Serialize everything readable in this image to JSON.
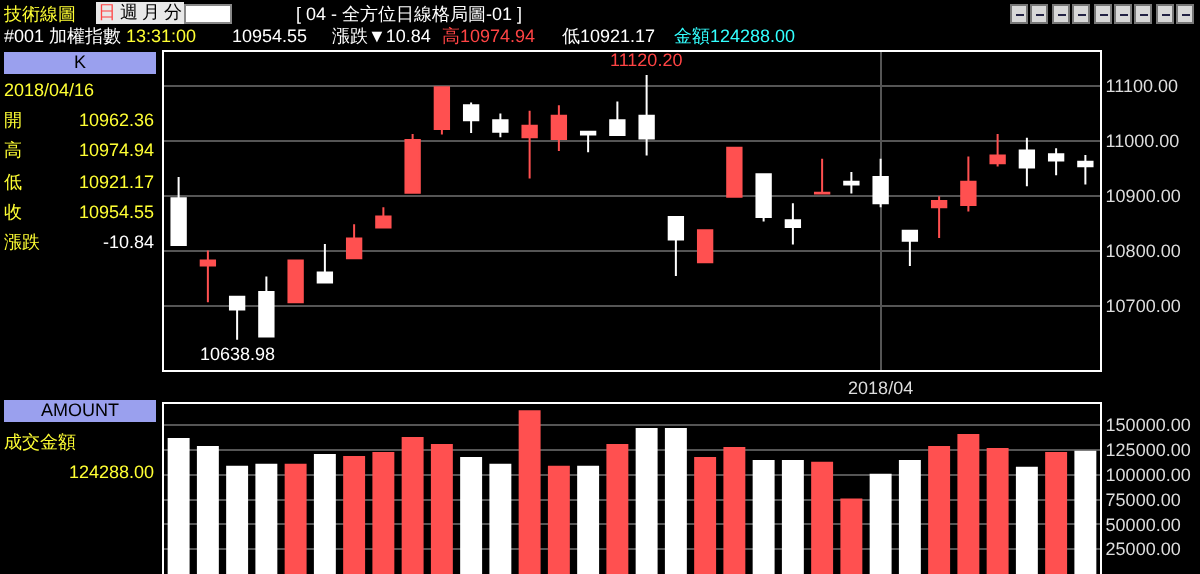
{
  "chart_data": [
    {
      "type": "candlestick",
      "title": "[ 04 - 全方位日線格局圖-01 ]",
      "categories": [
        null,
        null,
        null,
        null,
        null,
        null,
        null,
        null,
        null,
        null,
        null,
        null,
        null,
        null,
        null,
        null,
        null,
        null,
        null,
        null,
        null,
        null,
        null,
        null,
        "2018/04",
        null,
        null,
        null,
        null,
        null,
        null,
        null
      ],
      "ohlc": [
        [
          10896,
          10935,
          10811,
          10811
        ],
        [
          10774,
          10801,
          10707,
          10783
        ],
        [
          10717,
          10717,
          10638.98,
          10694
        ],
        [
          10726,
          10754,
          10645,
          10645
        ],
        [
          10707,
          10783,
          10707,
          10783
        ],
        [
          10761,
          10813,
          10743,
          10743
        ],
        [
          10787,
          10849,
          10787,
          10823
        ],
        [
          10843,
          10880,
          10843,
          10863
        ],
        [
          10906,
          11013,
          10906,
          11002
        ],
        [
          11022,
          11098,
          11012,
          11098
        ],
        [
          11065,
          11070,
          11015,
          11038
        ],
        [
          11038,
          11050,
          11007,
          11017
        ],
        [
          11007,
          11055,
          10932,
          11028
        ],
        [
          11004,
          11065,
          10982,
          11046
        ],
        [
          11017,
          11017,
          10980,
          11012
        ],
        [
          11038,
          11072,
          11011,
          11011
        ],
        [
          11046,
          11120.2,
          10974,
          11005
        ],
        [
          10862,
          10862,
          10755,
          10821
        ],
        [
          10780,
          10838,
          10778,
          10838
        ],
        [
          10899,
          10988,
          10899,
          10988
        ],
        [
          10940,
          10940,
          10854,
          10862
        ],
        [
          10856,
          10887,
          10812,
          10844
        ],
        [
          10905,
          10968,
          10905,
          10906
        ],
        [
          10926,
          10944,
          10905,
          10921
        ],
        [
          10935,
          10968,
          10880,
          10887
        ],
        [
          10837,
          10837,
          10773,
          10819
        ],
        [
          10880,
          10900,
          10824,
          10891
        ],
        [
          10884,
          10972,
          10872,
          10926
        ],
        [
          10960,
          11013,
          10954,
          10974
        ],
        [
          10983,
          11006,
          10918,
          10952
        ],
        [
          10976,
          10987,
          10938,
          10965
        ],
        [
          10962.36,
          10974.94,
          10921.17,
          10954.55
        ]
      ],
      "colors": [
        "#ffffff",
        "#ff5050",
        "#ffffff",
        "#ffffff",
        "#ff5050",
        "#ffffff",
        "#ff5050",
        "#ff5050",
        "#ff5050",
        "#ff5050",
        "#ffffff",
        "#ffffff",
        "#ff5050",
        "#ff5050",
        "#ffffff",
        "#ffffff",
        "#ffffff",
        "#ffffff",
        "#ff5050",
        "#ff5050",
        "#ffffff",
        "#ffffff",
        "#ff5050",
        "#ffffff",
        "#ffffff",
        "#ffffff",
        "#ff5050",
        "#ff5050",
        "#ff5050",
        "#ffffff",
        "#ffffff",
        "#ffffff"
      ],
      "ylim": [
        10584,
        11162
      ],
      "yticks": [
        {
          "value": 10700,
          "label": "10700.00"
        },
        {
          "value": 10800,
          "label": "10800.00"
        },
        {
          "value": 10900,
          "label": "10900.00"
        },
        {
          "value": 11000,
          "label": "11000.00"
        },
        {
          "value": 11100,
          "label": "11100.00"
        }
      ],
      "grid": true,
      "annotations": [
        "技術線圖",
        "日",
        "週",
        "月",
        "分",
        "#001 加權指數",
        "13:31:00",
        "10954.55",
        "漲跌▼10.84",
        "高10974.94",
        "低10921.17",
        "金額124288.00",
        "K",
        "2018/04/16",
        "開",
        "10962.36",
        "高",
        "10974.94",
        "低",
        "10921.17",
        "收",
        "10954.55",
        "漲跌",
        "-10.84",
        {
          "text": "11120.20",
          "y": 11120.2
        },
        {
          "text": "10638.98",
          "y": 10638.98
        }
      ]
    },
    {
      "type": "bar",
      "tick_labels": "y",
      "categories": [
        null,
        null,
        null,
        null,
        null,
        null,
        null,
        null,
        null,
        null,
        null,
        null,
        null,
        null,
        null,
        null,
        null,
        null,
        null,
        null,
        null,
        null,
        null,
        null,
        null,
        null,
        null,
        null,
        null,
        null,
        null,
        null
      ],
      "values": [
        137000,
        129000,
        109000,
        111000,
        111000,
        121000,
        119000,
        123000,
        138000,
        131000,
        118000,
        111000,
        165000,
        109000,
        109000,
        131000,
        147000,
        147000,
        118000,
        128000,
        115000,
        115000,
        113000,
        76000,
        101000,
        115000,
        129000,
        141000,
        127000,
        108000,
        123000,
        124288
      ],
      "colors": [
        "#ffffff",
        "#ffffff",
        "#ffffff",
        "#ffffff",
        "#ff5050",
        "#ffffff",
        "#ff5050",
        "#ff5050",
        "#ff5050",
        "#ff5050",
        "#ffffff",
        "#ffffff",
        "#ff5050",
        "#ff5050",
        "#ffffff",
        "#ff5050",
        "#ffffff",
        "#ffffff",
        "#ff5050",
        "#ff5050",
        "#ffffff",
        "#ffffff",
        "#ff5050",
        "#ff5050",
        "#ffffff",
        "#ffffff",
        "#ff5050",
        "#ff5050",
        "#ff5050",
        "#ffffff",
        "#ff5050",
        "#ffffff"
      ],
      "ylim": [
        0,
        171300
      ],
      "yticks": [
        {
          "value": 25000,
          "label": "25000.00"
        },
        {
          "value": 50000,
          "label": "50000.00"
        },
        {
          "value": 75000,
          "label": "75000.00"
        },
        {
          "value": 100000,
          "label": "100000.00"
        },
        {
          "value": 125000,
          "label": "125000.00"
        },
        {
          "value": 150000,
          "label": "150000.00"
        }
      ],
      "grid": true,
      "annotations": [
        "AMOUNT",
        "成交金額",
        "124288.00"
      ]
    }
  ]
}
